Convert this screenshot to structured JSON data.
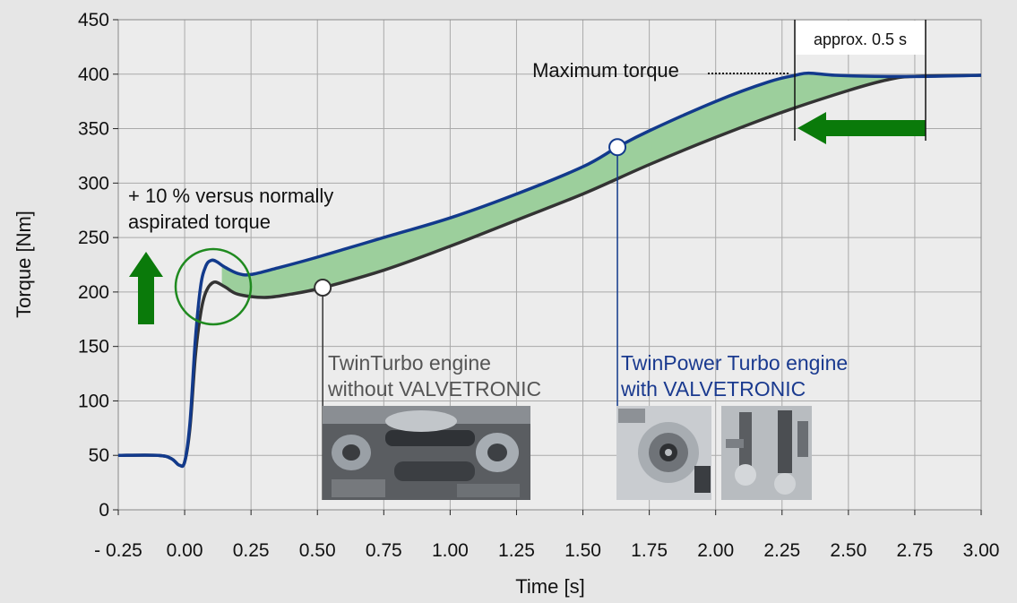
{
  "chart_data": {
    "type": "line",
    "xlabel": "Time [s]",
    "ylabel": "Torque [Nm]",
    "xlim": [
      -0.25,
      3.0
    ],
    "ylim": [
      0,
      450
    ],
    "x_ticks": [
      -0.25,
      0.0,
      0.25,
      0.5,
      0.75,
      1.0,
      1.25,
      1.5,
      1.75,
      2.0,
      2.25,
      2.5,
      2.75,
      3.0
    ],
    "x_tick_labels": [
      "- 0.25",
      "0.00",
      "0.25",
      "0.50",
      "0.75",
      "1.00",
      "1.25",
      "1.50",
      "1.75",
      "2.00",
      "2.25",
      "2.50",
      "2.75",
      "3.00"
    ],
    "y_ticks": [
      0,
      50,
      100,
      150,
      200,
      250,
      300,
      350,
      400,
      450
    ],
    "y_tick_labels": [
      "0",
      "50",
      "100",
      "150",
      "200",
      "250",
      "300",
      "350",
      "400",
      "450"
    ],
    "grid": true,
    "series": [
      {
        "name": "TwinPower Turbo engine with VALVETRONIC",
        "color": "#123a8c",
        "points": [
          [
            -0.25,
            50
          ],
          [
            -0.1,
            50
          ],
          [
            -0.05,
            47
          ],
          [
            -0.02,
            41
          ],
          [
            0.0,
            44
          ],
          [
            0.02,
            80
          ],
          [
            0.04,
            155
          ],
          [
            0.06,
            205
          ],
          [
            0.08,
            224
          ],
          [
            0.1,
            229
          ],
          [
            0.12,
            228
          ],
          [
            0.15,
            223
          ],
          [
            0.2,
            217
          ],
          [
            0.25,
            216
          ],
          [
            0.35,
            222
          ],
          [
            0.5,
            232
          ],
          [
            0.75,
            250
          ],
          [
            1.0,
            268
          ],
          [
            1.25,
            290
          ],
          [
            1.5,
            315
          ],
          [
            1.63,
            333
          ],
          [
            1.75,
            348
          ],
          [
            2.0,
            375
          ],
          [
            2.2,
            393
          ],
          [
            2.3,
            399
          ],
          [
            2.35,
            401
          ],
          [
            2.45,
            399
          ],
          [
            2.6,
            398
          ],
          [
            2.8,
            398
          ],
          [
            3.0,
            399
          ]
        ]
      },
      {
        "name": "TwinTurbo engine without VALVETRONIC",
        "color": "#333333",
        "points": [
          [
            -0.25,
            50
          ],
          [
            -0.1,
            50
          ],
          [
            -0.05,
            47
          ],
          [
            -0.02,
            41
          ],
          [
            0.0,
            44
          ],
          [
            0.02,
            75
          ],
          [
            0.04,
            140
          ],
          [
            0.06,
            180
          ],
          [
            0.08,
            200
          ],
          [
            0.11,
            209
          ],
          [
            0.15,
            205
          ],
          [
            0.2,
            198
          ],
          [
            0.3,
            195
          ],
          [
            0.4,
            198
          ],
          [
            0.52,
            204
          ],
          [
            0.75,
            220
          ],
          [
            1.0,
            242
          ],
          [
            1.25,
            266
          ],
          [
            1.5,
            290
          ],
          [
            1.75,
            317
          ],
          [
            2.0,
            342
          ],
          [
            2.25,
            365
          ],
          [
            2.5,
            385
          ],
          [
            2.65,
            395
          ],
          [
            2.75,
            398
          ],
          [
            3.0,
            399
          ]
        ]
      }
    ],
    "markers": [
      {
        "x": 0.52,
        "y": 204
      },
      {
        "x": 1.63,
        "y": 333
      }
    ],
    "annotations": {
      "max_torque": "Maximum torque",
      "approx": "approx. 0.5 s",
      "plus10_line1": "+ 10 % versus normally",
      "plus10_line2": "aspirated torque",
      "twinturbo_line1": "TwinTurbo engine",
      "twinturbo_line2": "without VALVETRONIC",
      "twinpower_line1": "TwinPower Turbo engine",
      "twinpower_line2": "with VALVETRONIC"
    },
    "colors": {
      "fill_between": "#9ccf9c",
      "arrow_green": "#0a7a0a",
      "circle_green": "#1f8a1f",
      "plot_bg": "#ececec",
      "page_bg": "#e6e6e6"
    }
  }
}
